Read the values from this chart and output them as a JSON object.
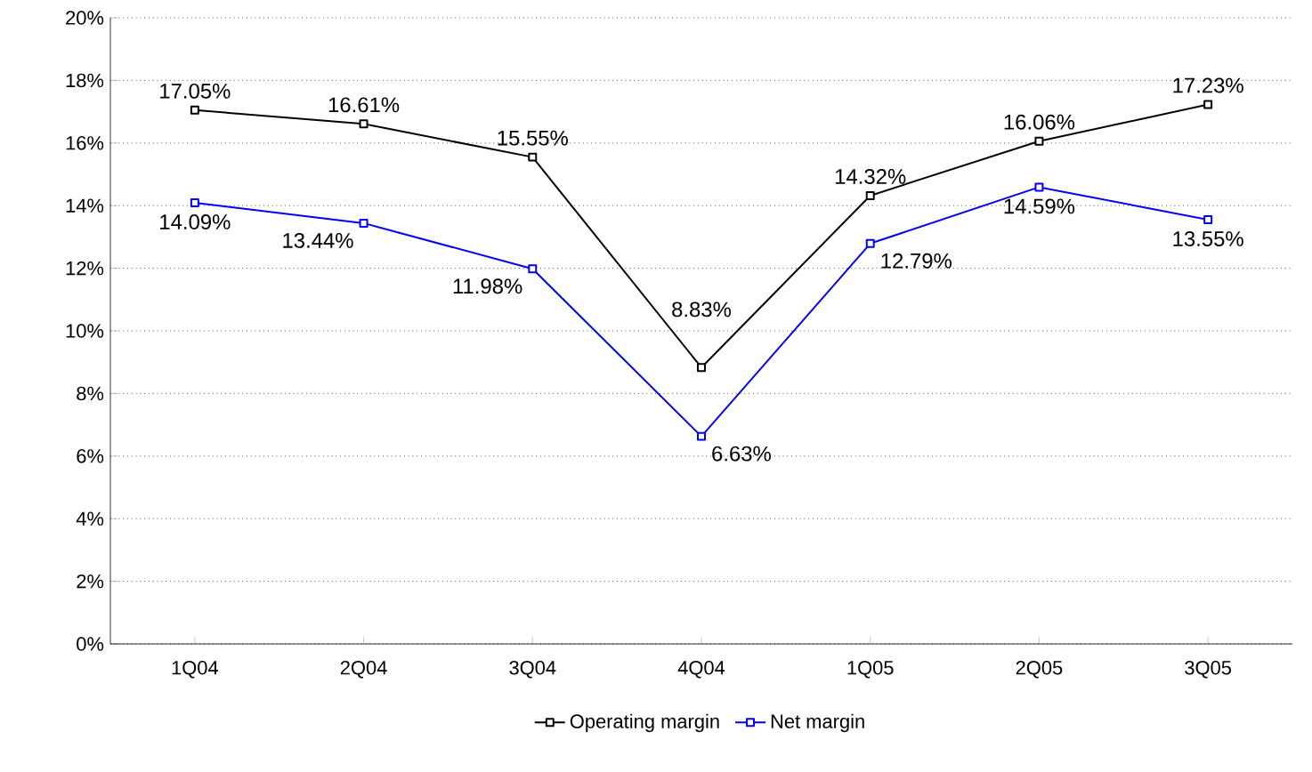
{
  "chart_data": {
    "type": "line",
    "categories": [
      "1Q04",
      "2Q04",
      "3Q04",
      "4Q04",
      "1Q05",
      "2Q05",
      "3Q05"
    ],
    "series": [
      {
        "name": "Operating margin",
        "color": "#000000",
        "values": [
          17.05,
          16.61,
          15.55,
          8.83,
          14.32,
          16.06,
          17.23
        ],
        "value_labels": [
          "17.05%",
          "16.61%",
          "15.55%",
          "8.83%",
          "14.32%",
          "16.06%",
          "17.23%"
        ]
      },
      {
        "name": "Net margin",
        "color": "#0000ff",
        "values": [
          14.09,
          13.44,
          11.98,
          6.63,
          12.79,
          14.59,
          13.55
        ],
        "value_labels": [
          "14.09%",
          "13.44%",
          "11.98%",
          "6.63%",
          "12.79%",
          "14.59%",
          "13.55%"
        ]
      }
    ],
    "ylim": [
      0,
      20
    ],
    "yticks": [
      {
        "value": 0,
        "label": "0%"
      },
      {
        "value": 2,
        "label": "2%"
      },
      {
        "value": 4,
        "label": "4%"
      },
      {
        "value": 6,
        "label": "6%"
      },
      {
        "value": 8,
        "label": "8%"
      },
      {
        "value": 10,
        "label": "10%"
      },
      {
        "value": 12,
        "label": "12%"
      },
      {
        "value": 14,
        "label": "14%"
      },
      {
        "value": 16,
        "label": "16%"
      },
      {
        "value": 18,
        "label": "18%"
      },
      {
        "value": 20,
        "label": "20%"
      }
    ],
    "grid": "y",
    "legend": "bottom",
    "marker": "square",
    "line_style": "solid"
  }
}
